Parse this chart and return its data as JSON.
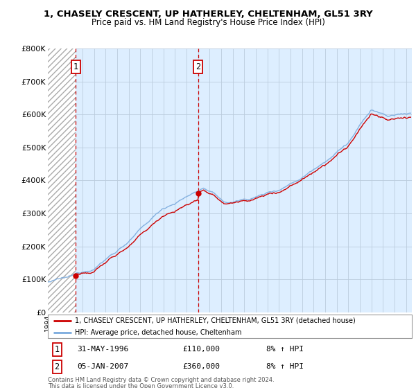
{
  "title1": "1, CHASELY CRESCENT, UP HATHERLEY, CHELTENHAM, GL51 3RY",
  "title2": "Price paid vs. HM Land Registry's House Price Index (HPI)",
  "ylim": [
    0,
    800000
  ],
  "yticks": [
    0,
    100000,
    200000,
    300000,
    400000,
    500000,
    600000,
    700000,
    800000
  ],
  "ytick_labels": [
    "£0",
    "£100K",
    "£200K",
    "£300K",
    "£400K",
    "£500K",
    "£600K",
    "£700K",
    "£800K"
  ],
  "xmin": 1994.0,
  "xmax": 2025.5,
  "purchase1_date": 1996.42,
  "purchase1_price": 110000,
  "purchase2_date": 2007.01,
  "purchase2_price": 360000,
  "sale_color": "#cc0000",
  "hpi_color": "#7aaadd",
  "legend_entry1": "1, CHASELY CRESCENT, UP HATHERLEY, CHELTENHAM, GL51 3RY (detached house)",
  "legend_entry2": "HPI: Average price, detached house, Cheltenham",
  "table_row1": [
    "1",
    "31-MAY-1996",
    "£110,000",
    "8% ↑ HPI"
  ],
  "table_row2": [
    "2",
    "05-JAN-2007",
    "£360,000",
    "8% ↑ HPI"
  ],
  "footer1": "Contains HM Land Registry data © Crown copyright and database right 2024.",
  "footer2": "This data is licensed under the Open Government Licence v3.0.",
  "bg_color": "#ddeeff",
  "hatch_color": "#aaaaaa",
  "grid_color": "#bbccdd"
}
